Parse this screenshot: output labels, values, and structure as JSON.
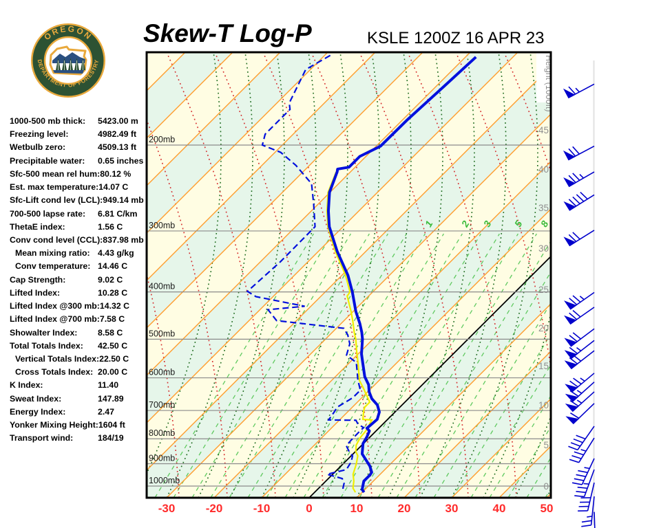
{
  "logo": {
    "text_top": "OREGON",
    "text_bottom": "DEPARTMENT OF FORESTRY",
    "ring_color": "#2d5233",
    "gold_color": "#e9a93c",
    "mountain_color": "#2b5080"
  },
  "header": {
    "title": "Skew-T Log-P",
    "station_line": "KSLE 1200Z 16 APR 23"
  },
  "stats": [
    {
      "label": "1000-500 mb thick:",
      "value": "5423.00 m",
      "indent": false
    },
    {
      "label": "Freezing level:",
      "value": "4982.49 ft",
      "indent": false
    },
    {
      "label": "Wetbulb zero:",
      "value": "4509.13 ft",
      "indent": false
    },
    {
      "label": "Precipitable water:",
      "value": "0.65 inches",
      "indent": false
    },
    {
      "label": "Sfc-500 mean rel hum:",
      "value": "80.12 %",
      "indent": false
    },
    {
      "label": "Est. max temperature:",
      "value": "14.07 C",
      "indent": false
    },
    {
      "label": "Sfc-Lift cond lev (LCL):",
      "value": "949.14 mb",
      "indent": false
    },
    {
      "label": "700-500 lapse rate:",
      "value": "6.81 C/km",
      "indent": false
    },
    {
      "label": "ThetaE index:",
      "value": "1.56 C",
      "indent": false
    },
    {
      "label": "Conv cond level (CCL):",
      "value": "837.98 mb",
      "indent": false
    },
    {
      "label": "Mean mixing ratio:",
      "value": "4.43 g/kg",
      "indent": true
    },
    {
      "label": "Conv temperature:",
      "value": "14.46 C",
      "indent": true
    },
    {
      "label": "Cap Strength:",
      "value": "9.02 C",
      "indent": false
    },
    {
      "label": "Lifted Index:",
      "value": "10.28 C",
      "indent": false
    },
    {
      "label": "Lifted Index @300 mb:",
      "value": "14.32 C",
      "indent": false
    },
    {
      "label": "Lifted Index @700 mb:",
      "value": "7.58 C",
      "indent": false
    },
    {
      "label": "Showalter Index:",
      "value": "8.58 C",
      "indent": false
    },
    {
      "label": "Total Totals Index:",
      "value": "42.50 C",
      "indent": false
    },
    {
      "label": "Vertical Totals Index:",
      "value": "22.50 C",
      "indent": true
    },
    {
      "label": "Cross Totals Index:",
      "value": "20.00 C",
      "indent": true
    },
    {
      "label": "K Index:",
      "value": "11.40",
      "indent": false
    },
    {
      "label": "Sweat Index:",
      "value": "147.89",
      "indent": false
    },
    {
      "label": "Energy Index:",
      "value": "2.47",
      "indent": false
    },
    {
      "label": "Yonker Mixing Height:",
      "value": "1604 ft",
      "indent": false
    },
    {
      "label": "Transport wind:",
      "value": "184/19",
      "indent": false
    }
  ],
  "chart_data": {
    "type": "skewt_log_p_sounding",
    "station": "KSLE",
    "valid_time": "1200Z 16 APR 23",
    "pressure_labels": [
      "200mb",
      "300mb",
      "400mb",
      "500mb",
      "600mb",
      "700mb",
      "800mb",
      "900mb",
      "1000mb"
    ],
    "pressure_levels_mb": [
      200,
      300,
      400,
      500,
      600,
      700,
      800,
      900,
      1000
    ],
    "temp_ticks_c": [
      -30,
      -20,
      -10,
      0,
      10,
      20,
      30,
      40,
      50
    ],
    "temp_axis_color": "#ff2b2b",
    "height_axis": {
      "title": "Height (1000ft)",
      "ticks": [
        [
          0,
          708
        ],
        [
          5,
          648
        ],
        [
          10,
          590
        ],
        [
          15,
          533
        ],
        [
          20,
          478
        ],
        [
          25,
          422
        ],
        [
          30,
          362
        ],
        [
          35,
          303
        ],
        [
          40,
          247
        ],
        [
          45,
          190
        ],
        [
          50,
          132
        ]
      ],
      "color": "#8f8f8f"
    },
    "mixing_ratio_labels": [
      [
        1,
        627
      ],
      [
        2,
        680
      ],
      [
        3,
        712
      ],
      [
        5,
        757
      ],
      [
        8,
        795
      ]
    ],
    "mixing_label_y": 328,
    "isotherm_step_c": 10,
    "highlight_isotherm_c": 0,
    "series": {
      "temperature_c": [
        [
          132,
          -57.8
        ],
        [
          154,
          -58.4
        ],
        [
          177,
          -59.0
        ],
        [
          201,
          -59.1
        ],
        [
          211,
          -61.3
        ],
        [
          222,
          -61.3
        ],
        [
          224,
          -63.3
        ],
        [
          227,
          -62.8
        ],
        [
          250,
          -60.1
        ],
        [
          273,
          -56.4
        ],
        [
          294,
          -52.9
        ],
        [
          330,
          -46.1
        ],
        [
          370,
          -38.7
        ],
        [
          400,
          -34.3
        ],
        [
          439,
          -29.4
        ],
        [
          464,
          -26.1
        ],
        [
          484,
          -23.8
        ],
        [
          500,
          -22.2
        ],
        [
          536,
          -19.3
        ],
        [
          563,
          -16.8
        ],
        [
          597,
          -13.8
        ],
        [
          620,
          -11.3
        ],
        [
          641,
          -9.7
        ],
        [
          662,
          -7.7
        ],
        [
          682,
          -5.2
        ],
        [
          705,
          -3.3
        ],
        [
          730,
          -2.2
        ],
        [
          761,
          -2.5
        ],
        [
          771,
          -1.4
        ],
        [
          792,
          -0.7
        ],
        [
          818,
          -0.1
        ],
        [
          859,
          1.9
        ],
        [
          910,
          6.1
        ],
        [
          937,
          7.8
        ],
        [
          949,
          8.0
        ],
        [
          977,
          8.0
        ],
        [
          1016,
          9.4
        ],
        [
          1030,
          10.4
        ]
      ],
      "dewpoint_c": [
        [
          131,
          -88.8
        ],
        [
          140,
          -91.0
        ],
        [
          164,
          -87.4
        ],
        [
          169,
          -85.9
        ],
        [
          190,
          -85.9
        ],
        [
          200,
          -84.2
        ],
        [
          207,
          -78.8
        ],
        [
          220,
          -72.9
        ],
        [
          240,
          -65.7
        ],
        [
          264,
          -61.0
        ],
        [
          294,
          -55.9
        ],
        [
          347,
          -55.8
        ],
        [
          399,
          -56.5
        ],
        [
          409,
          -53.6
        ],
        [
          428,
          -41.3
        ],
        [
          435,
          -48.3
        ],
        [
          458,
          -44.2
        ],
        [
          475,
          -28.4
        ],
        [
          490,
          -26.2
        ],
        [
          511,
          -23.9
        ],
        [
          539,
          -22.2
        ],
        [
          558,
          -18.6
        ],
        [
          607,
          -14.5
        ],
        [
          636,
          -11.9
        ],
        [
          659,
          -11.9
        ],
        [
          689,
          -13.2
        ],
        [
          705,
          -12.8
        ],
        [
          732,
          -12.3
        ],
        [
          733,
          -6.5
        ],
        [
          747,
          -5.2
        ],
        [
          759,
          -3.3
        ],
        [
          769,
          -3.4
        ],
        [
          805,
          -3.3
        ],
        [
          826,
          -3.2
        ],
        [
          850,
          -1.3
        ],
        [
          867,
          0.3
        ],
        [
          893,
          1.3
        ],
        [
          925,
          1.9
        ],
        [
          946,
          -1.2
        ],
        [
          965,
          2.9
        ],
        [
          987,
          4.3
        ],
        [
          1010,
          5.1
        ],
        [
          1030,
          6.1
        ]
      ],
      "wetbulb_c": [
        [
          227,
          -63.0
        ],
        [
          250,
          -60.4
        ],
        [
          273,
          -56.7
        ],
        [
          294,
          -53.2
        ],
        [
          330,
          -46.5
        ],
        [
          370,
          -39.2
        ],
        [
          400,
          -34.8
        ],
        [
          408,
          -34.5
        ],
        [
          439,
          -30.4
        ],
        [
          464,
          -27.5
        ],
        [
          484,
          -25.4
        ],
        [
          500,
          -23.6
        ],
        [
          528,
          -21.0
        ],
        [
          563,
          -17.8
        ],
        [
          607,
          -14.2
        ],
        [
          627,
          -12.0
        ],
        [
          673,
          -7.4
        ],
        [
          689,
          -7.4
        ],
        [
          702,
          -6.8
        ],
        [
          730,
          -5.2
        ],
        [
          732,
          -3.2
        ],
        [
          747,
          -2.8
        ],
        [
          759,
          -2.3
        ],
        [
          797,
          -1.9
        ],
        [
          824,
          -1.2
        ],
        [
          850,
          0.1
        ],
        [
          867,
          1.4
        ],
        [
          901,
          2.8
        ],
        [
          946,
          4.3
        ],
        [
          977,
          5.9
        ],
        [
          1010,
          7.2
        ],
        [
          1030,
          8.6
        ]
      ]
    },
    "winds_p_dir_spd": [
      [
        150,
        242,
        65
      ],
      [
        201,
        242,
        70
      ],
      [
        227,
        240,
        75
      ],
      [
        253,
        238,
        90
      ],
      [
        299,
        238,
        70
      ],
      [
        401,
        235,
        75
      ],
      [
        430,
        235,
        70
      ],
      [
        476,
        233,
        70
      ],
      [
        503,
        232,
        65
      ],
      [
        528,
        232,
        70
      ],
      [
        587,
        230,
        75
      ],
      [
        612,
        228,
        65
      ],
      [
        641,
        228,
        65
      ],
      [
        677,
        226,
        60
      ],
      [
        754,
        215,
        40
      ],
      [
        797,
        212,
        35
      ],
      [
        878,
        205,
        45
      ],
      [
        925,
        200,
        35
      ],
      [
        984,
        193,
        40
      ],
      [
        1050,
        186,
        25
      ],
      [
        1130,
        178,
        18
      ]
    ],
    "colors": {
      "band_yellow": "#fffde3",
      "band_green": "#e6f6ea",
      "isotherm": "#ff9d2e",
      "pressure_line": "#8a8a8a",
      "dry_adiabat": "#d42a2a",
      "moist_adiabat": "#1e6b1e",
      "mixing_ratio": "#5fc95f",
      "temperature": "#0010dd",
      "dewpoint": "#0010dd",
      "wetbulb": "#efef00",
      "wind_barb": "#0000cc",
      "zero_line": "#000000"
    }
  }
}
